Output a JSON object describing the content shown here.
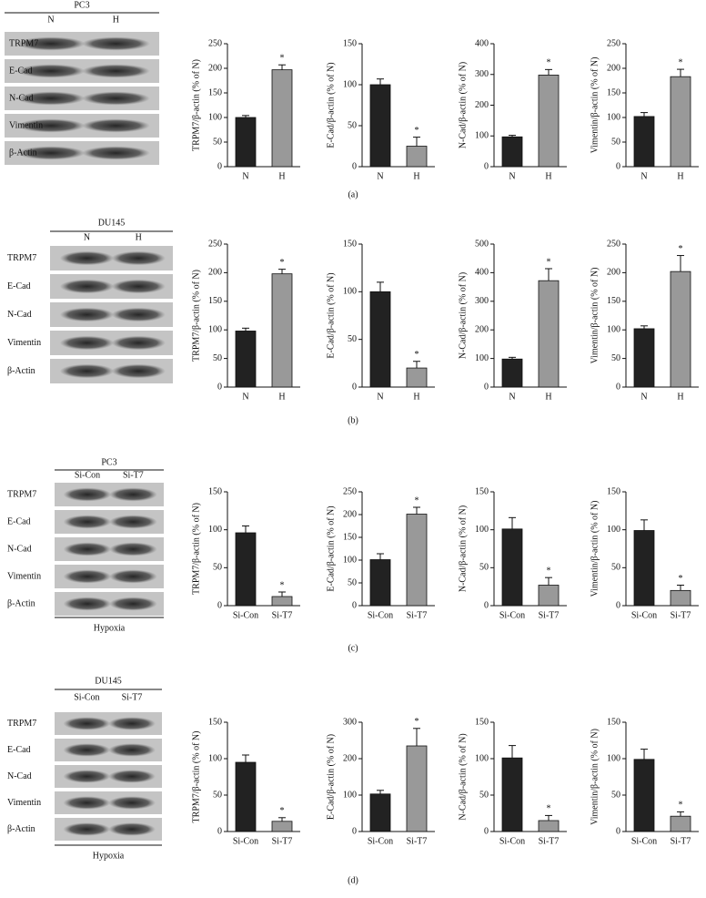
{
  "chart_data": [
    {
      "type": "bar",
      "ylabel": "TRPM7/β-actin (% of N)",
      "categories": [
        "N",
        "H"
      ],
      "values": [
        100,
        197
      ],
      "errors": [
        4,
        10
      ],
      "colors": [
        "#222222",
        "#999999"
      ],
      "significance": [
        null,
        "*"
      ],
      "ylim": [
        0,
        250
      ],
      "yticks": [
        0,
        50,
        100,
        150,
        200,
        250
      ]
    },
    {
      "type": "bar",
      "ylabel": "E-Cad/β-actin (% of N)",
      "categories": [
        "N",
        "H"
      ],
      "values": [
        100,
        25
      ],
      "errors": [
        7,
        11
      ],
      "colors": [
        "#222222",
        "#999999"
      ],
      "significance": [
        null,
        "*"
      ],
      "ylim": [
        0,
        150
      ],
      "yticks": [
        0,
        50,
        100,
        150
      ]
    },
    {
      "type": "bar",
      "ylabel": "N-Cad/β-actin (% of N)",
      "categories": [
        "N",
        "H"
      ],
      "values": [
        97,
        298
      ],
      "errors": [
        5,
        18
      ],
      "colors": [
        "#222222",
        "#999999"
      ],
      "significance": [
        null,
        "*"
      ],
      "ylim": [
        0,
        400
      ],
      "yticks": [
        0,
        100,
        200,
        300,
        400
      ]
    },
    {
      "type": "bar",
      "ylabel": "Vimentin/β-actin (% of N)",
      "categories": [
        "N",
        "H"
      ],
      "values": [
        102,
        183
      ],
      "errors": [
        8,
        15
      ],
      "colors": [
        "#222222",
        "#999999"
      ],
      "significance": [
        null,
        "*"
      ],
      "ylim": [
        0,
        250
      ],
      "yticks": [
        0,
        50,
        100,
        150,
        200,
        250
      ]
    },
    {
      "type": "bar",
      "ylabel": "TRPM7/β-actin (% of N)",
      "categories": [
        "N",
        "H"
      ],
      "values": [
        98,
        198
      ],
      "errors": [
        5,
        8
      ],
      "colors": [
        "#222222",
        "#999999"
      ],
      "significance": [
        null,
        "*"
      ],
      "ylim": [
        0,
        250
      ],
      "yticks": [
        0,
        50,
        100,
        150,
        200,
        250
      ]
    },
    {
      "type": "bar",
      "ylabel": "E-Cad/β-actin (% of N)",
      "categories": [
        "N",
        "H"
      ],
      "values": [
        100,
        20
      ],
      "errors": [
        10,
        7
      ],
      "colors": [
        "#222222",
        "#999999"
      ],
      "significance": [
        null,
        "*"
      ],
      "ylim": [
        0,
        150
      ],
      "yticks": [
        0,
        50,
        100,
        150
      ]
    },
    {
      "type": "bar",
      "ylabel": "N-Cad/β-actin (% of N)",
      "categories": [
        "N",
        "H"
      ],
      "values": [
        98,
        372
      ],
      "errors": [
        6,
        42
      ],
      "colors": [
        "#222222",
        "#999999"
      ],
      "significance": [
        null,
        "*"
      ],
      "ylim": [
        0,
        500
      ],
      "yticks": [
        0,
        100,
        200,
        300,
        400,
        500
      ]
    },
    {
      "type": "bar",
      "ylabel": "Vimentin/β-actin (% of N)",
      "categories": [
        "N",
        "H"
      ],
      "values": [
        102,
        202
      ],
      "errors": [
        5,
        28
      ],
      "colors": [
        "#222222",
        "#999999"
      ],
      "significance": [
        null,
        "*"
      ],
      "ylim": [
        0,
        250
      ],
      "yticks": [
        0,
        50,
        100,
        150,
        200,
        250
      ]
    },
    {
      "type": "bar",
      "ylabel": "TRPM7/β-actin (% of N)",
      "categories": [
        "Si-Con",
        "Si-T7"
      ],
      "values": [
        96,
        12
      ],
      "errors": [
        9,
        6
      ],
      "colors": [
        "#222222",
        "#999999"
      ],
      "significance": [
        null,
        "*"
      ],
      "ylim": [
        0,
        150
      ],
      "yticks": [
        0,
        50,
        100,
        150
      ]
    },
    {
      "type": "bar",
      "ylabel": "E-Cad/β-actin (% of N)",
      "categories": [
        "Si-Con",
        "Si-T7"
      ],
      "values": [
        101,
        201
      ],
      "errors": [
        13,
        15
      ],
      "colors": [
        "#222222",
        "#999999"
      ],
      "significance": [
        null,
        "*"
      ],
      "ylim": [
        0,
        250
      ],
      "yticks": [
        0,
        50,
        100,
        150,
        200,
        250
      ]
    },
    {
      "type": "bar",
      "ylabel": "N-Cad/β-actin (% of N)",
      "categories": [
        "Si-Con",
        "Si-T7"
      ],
      "values": [
        101,
        27
      ],
      "errors": [
        15,
        10
      ],
      "colors": [
        "#222222",
        "#999999"
      ],
      "significance": [
        null,
        "*"
      ],
      "ylim": [
        0,
        150
      ],
      "yticks": [
        0,
        50,
        100,
        150
      ]
    },
    {
      "type": "bar",
      "ylabel": "Vimentin/β-actin (% of N)",
      "categories": [
        "Si-Con",
        "Si-T7"
      ],
      "values": [
        99,
        20
      ],
      "errors": [
        14,
        7
      ],
      "colors": [
        "#222222",
        "#999999"
      ],
      "significance": [
        null,
        "*"
      ],
      "ylim": [
        0,
        150
      ],
      "yticks": [
        0,
        50,
        100,
        150
      ]
    },
    {
      "type": "bar",
      "ylabel": "TRPM7/β-actin (% of N)",
      "categories": [
        "Si-Con",
        "Si-T7"
      ],
      "values": [
        95,
        14
      ],
      "errors": [
        10,
        5
      ],
      "colors": [
        "#222222",
        "#999999"
      ],
      "significance": [
        null,
        "*"
      ],
      "ylim": [
        0,
        150
      ],
      "yticks": [
        0,
        50,
        100,
        150
      ]
    },
    {
      "type": "bar",
      "ylabel": "E-Cad/β-actin (% of N)",
      "categories": [
        "Si-Con",
        "Si-T7"
      ],
      "values": [
        103,
        235
      ],
      "errors": [
        10,
        48
      ],
      "colors": [
        "#222222",
        "#999999"
      ],
      "significance": [
        null,
        "*"
      ],
      "ylim": [
        0,
        300
      ],
      "yticks": [
        0,
        100,
        200,
        300
      ]
    },
    {
      "type": "bar",
      "ylabel": "N-Cad/β-actin (% of N)",
      "categories": [
        "Si-Con",
        "Si-T7"
      ],
      "values": [
        101,
        15
      ],
      "errors": [
        17,
        7
      ],
      "colors": [
        "#222222",
        "#999999"
      ],
      "significance": [
        null,
        "*"
      ],
      "ylim": [
        0,
        150
      ],
      "yticks": [
        0,
        50,
        100,
        150
      ]
    },
    {
      "type": "bar",
      "ylabel": "Vimentin/β-actin (% of N)",
      "categories": [
        "Si-Con",
        "Si-T7"
      ],
      "values": [
        99,
        21
      ],
      "errors": [
        14,
        6
      ],
      "colors": [
        "#222222",
        "#999999"
      ],
      "significance": [
        null,
        "*"
      ],
      "ylim": [
        0,
        150
      ],
      "yticks": [
        0,
        50,
        100,
        150
      ]
    }
  ],
  "blots": [
    {
      "title": "PC3",
      "lanes": [
        "N",
        "H"
      ],
      "rows": [
        "TRPM7",
        "E-Cad",
        "N-Cad",
        "Vimentin",
        "β-Actin"
      ]
    },
    {
      "title": "DU145",
      "lanes": [
        "N",
        "H"
      ],
      "rows": [
        "TRPM7",
        "E-Cad",
        "N-Cad",
        "Vimentin",
        "β-Actin"
      ]
    },
    {
      "title": "PC3",
      "lanes": [
        "Si-Con",
        "Si-T7"
      ],
      "rows": [
        "TRPM7",
        "E-Cad",
        "N-Cad",
        "Vimentin",
        "β-Actin"
      ],
      "condition": "Hypoxia"
    },
    {
      "title": "DU145",
      "lanes": [
        "Si-Con",
        "Si-T7"
      ],
      "rows": [
        "TRPM7",
        "E-Cad",
        "N-Cad",
        "Vimentin",
        "β-Actin"
      ],
      "condition": "Hypoxia"
    }
  ],
  "captions": [
    "(a)",
    "(b)",
    "(c)",
    "(d)"
  ]
}
